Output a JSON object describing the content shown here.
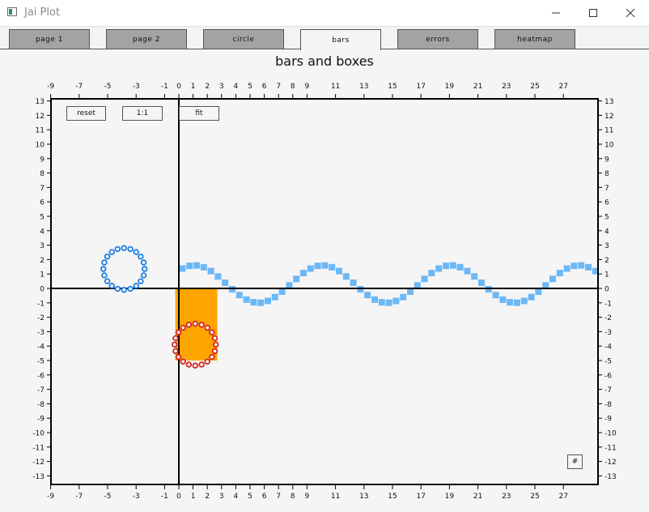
{
  "window": {
    "title": "Jai Plot",
    "minimize_icon": "minimize-icon",
    "maximize_icon": "maximize-icon",
    "close_icon": "close-icon"
  },
  "tabs": [
    {
      "label": "page 1",
      "active": false
    },
    {
      "label": "page 2",
      "active": false
    },
    {
      "label": "circle",
      "active": false
    },
    {
      "label": "bars",
      "active": true
    },
    {
      "label": "errors",
      "active": false
    },
    {
      "label": "heatmap",
      "active": false
    }
  ],
  "plot_buttons": {
    "reset": "reset",
    "one_to_one": "1:1",
    "fit": "fit",
    "grid": "#"
  },
  "chart_data": {
    "type": "scatter",
    "title": "bars and boxes",
    "xlabel": "",
    "ylabel": "",
    "xlim": [
      -9,
      29
    ],
    "ylim": [
      -14,
      13.5
    ],
    "x_ticks": [
      -9,
      -7,
      -5,
      -3,
      -1,
      0,
      1,
      2,
      3,
      4,
      5,
      6,
      7,
      8,
      9,
      11,
      13,
      15,
      17,
      19,
      21,
      23,
      25,
      27
    ],
    "y_ticks": [
      13,
      12,
      11,
      10,
      9,
      8,
      7,
      6,
      5,
      4,
      3,
      2,
      1,
      0,
      -1,
      -2,
      -3,
      -4,
      -5,
      -6,
      -7,
      -8,
      -9,
      -10,
      -11,
      -12,
      -13
    ],
    "grid": false,
    "bar": {
      "x0": -0.25,
      "x1": 2.7,
      "y0": 0,
      "y1": -5,
      "color": "#ffa500"
    },
    "sine_series": {
      "x_start": 0.25,
      "x_step": 0.5,
      "count": 59,
      "amplitude": 1.3,
      "period": 9,
      "phase": 1.1,
      "offset": 0.3,
      "color": "#6cb8f7"
    },
    "circles": [
      {
        "cx": -3.85,
        "cy": 1.35,
        "r": 1.45,
        "points": 20,
        "color": "#1a7ce0"
      },
      {
        "cx": 1.15,
        "cy": -3.9,
        "r": 1.45,
        "points": 20,
        "color": "#d42020"
      }
    ]
  }
}
